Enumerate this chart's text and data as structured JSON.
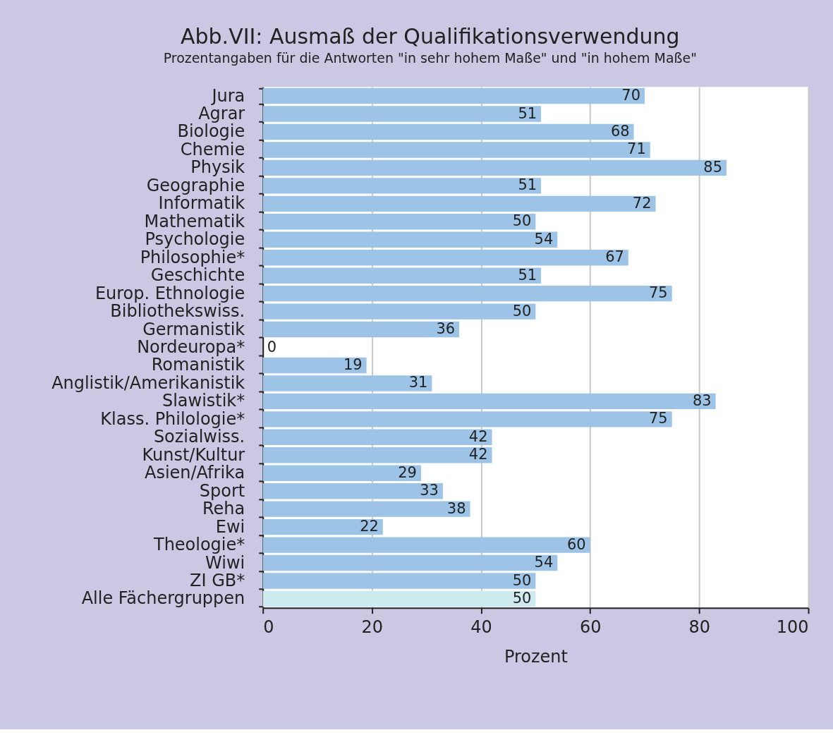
{
  "chart_data": {
    "type": "bar",
    "orientation": "horizontal",
    "title": "Abb.VII: Ausmaß der Qualifikationsverwendung",
    "subtitle": "Prozentangaben für die Antworten \"in sehr hohem Maße\" und \"in hohem Maße\"",
    "xlabel": "Prozent",
    "categories": [
      "Jura",
      "Agrar",
      "Biologie",
      "Chemie",
      "Physik",
      "Geographie",
      "Informatik",
      "Mathematik",
      "Psychologie",
      "Philosophie*",
      "Geschichte",
      "Europ. Ethnologie",
      "Bibliothekswiss.",
      "Germanistik",
      "Nordeuropa*",
      "Romanistik",
      "Anglistik/Amerikanistik",
      "Slawistik*",
      "Klass. Philologie*",
      "Sozialwiss.",
      "Kunst/Kultur",
      "Asien/Afrika",
      "Sport",
      "Reha",
      "Ewi",
      "Theologie*",
      "Wiwi",
      "ZI GB*",
      "Alle Fächergruppen"
    ],
    "values": [
      70,
      51,
      68,
      71,
      85,
      51,
      72,
      50,
      54,
      67,
      51,
      75,
      50,
      36,
      0,
      19,
      31,
      83,
      75,
      42,
      42,
      29,
      33,
      38,
      22,
      60,
      54,
      50,
      50
    ],
    "colors": [
      "#9dc3e6",
      "#9dc3e6",
      "#9dc3e6",
      "#9dc3e6",
      "#9dc3e6",
      "#9dc3e6",
      "#9dc3e6",
      "#9dc3e6",
      "#9dc3e6",
      "#9dc3e6",
      "#9dc3e6",
      "#9dc3e6",
      "#9dc3e6",
      "#9dc3e6",
      "#9dc3e6",
      "#9dc3e6",
      "#9dc3e6",
      "#9dc3e6",
      "#9dc3e6",
      "#9dc3e6",
      "#9dc3e6",
      "#9dc3e6",
      "#9dc3e6",
      "#9dc3e6",
      "#9dc3e6",
      "#9dc3e6",
      "#9dc3e6",
      "#9dc3e6",
      "#cdeaef"
    ],
    "xlim": [
      0,
      100
    ],
    "xticks": [
      0,
      20,
      40,
      60,
      80,
      100
    ],
    "grid": "x",
    "data_labels": true
  }
}
